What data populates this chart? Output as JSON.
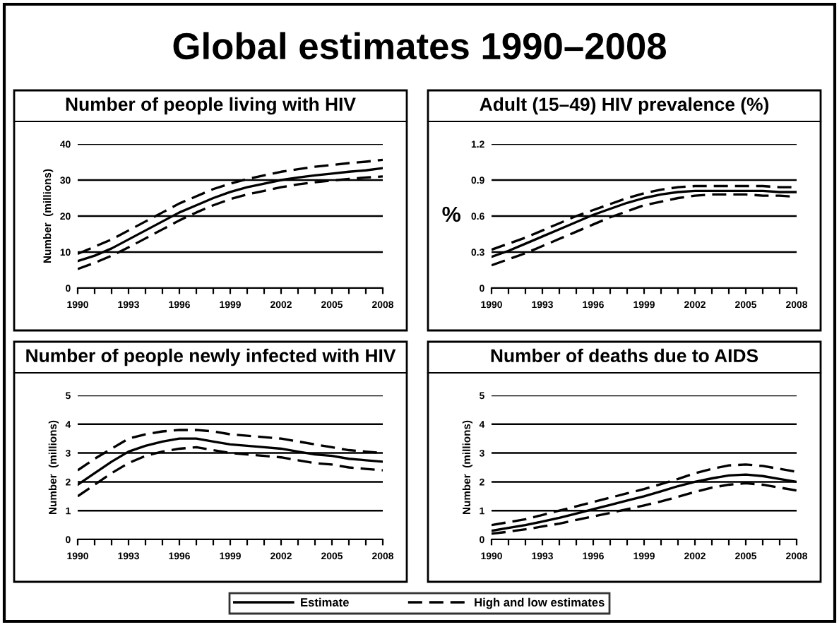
{
  "chart_data": [
    {
      "type": "line",
      "title": "Number of people living with HIV",
      "ylabel": "Number  (millions)",
      "annotations": [
        "Global estimates 1990–2008"
      ],
      "legend": "bottom",
      "grid": "y",
      "x": [
        1990,
        1991,
        1992,
        1993,
        1994,
        1995,
        1996,
        1997,
        1998,
        1999,
        2000,
        2001,
        2002,
        2003,
        2004,
        2005,
        2006,
        2007,
        2008
      ],
      "xlim": [
        1990,
        2008
      ],
      "xticks": [
        1990,
        {
          "value": 1991,
          "label": null
        },
        {
          "value": 1992,
          "label": null
        },
        1993,
        {
          "value": 1994,
          "label": null
        },
        {
          "value": 1995,
          "label": null
        },
        1996,
        {
          "value": 1997,
          "label": null
        },
        {
          "value": 1998,
          "label": null
        },
        1999,
        {
          "value": 2000,
          "label": null
        },
        {
          "value": 2001,
          "label": null
        },
        2002,
        {
          "value": 2003,
          "label": null
        },
        {
          "value": 2004,
          "label": null
        },
        2005,
        {
          "value": 2006,
          "label": null
        },
        {
          "value": 2007,
          "label": null
        },
        2008
      ],
      "ylim": [
        0,
        40
      ],
      "yticks": [
        0,
        10,
        20,
        30,
        40
      ],
      "series": [
        {
          "name": "Estimate",
          "color": "#000000",
          "line_style": "solid",
          "values": [
            7.5,
            9,
            11,
            13.5,
            16,
            18.5,
            21,
            23,
            25,
            26.7,
            28,
            29,
            30,
            30.7,
            31.3,
            31.8,
            32.3,
            32.7,
            33.3
          ]
        },
        {
          "name": "High and low estimates",
          "color": "#000000",
          "line_style": "dashed",
          "values": [
            9.5,
            11.5,
            13.5,
            16,
            18.5,
            21,
            23.5,
            25.5,
            27.5,
            29,
            30.3,
            31.3,
            32.3,
            33,
            33.7,
            34.2,
            34.7,
            35.1,
            35.6
          ]
        },
        {
          "color": "#000000",
          "line_style": "dashed",
          "values": [
            5.3,
            7,
            9,
            11.3,
            13.8,
            16.3,
            18.8,
            21,
            23,
            24.7,
            26,
            27,
            28,
            28.8,
            29.4,
            29.9,
            30.3,
            30.7,
            31
          ]
        }
      ]
    },
    {
      "type": "line",
      "title": "Adult (15–49) HIV prevalence (%)",
      "ylabel": "%",
      "grid": "y",
      "x": [
        1990,
        1991,
        1992,
        1993,
        1994,
        1995,
        1996,
        1997,
        1998,
        1999,
        2000,
        2001,
        2002,
        2003,
        2004,
        2005,
        2006,
        2007,
        2008
      ],
      "xlim": [
        1990,
        2008
      ],
      "xticks": [
        1990,
        {
          "value": 1991,
          "label": null
        },
        {
          "value": 1992,
          "label": null
        },
        1993,
        {
          "value": 1994,
          "label": null
        },
        {
          "value": 1995,
          "label": null
        },
        1996,
        {
          "value": 1997,
          "label": null
        },
        {
          "value": 1998,
          "label": null
        },
        1999,
        {
          "value": 2000,
          "label": null
        },
        {
          "value": 2001,
          "label": null
        },
        2002,
        {
          "value": 2003,
          "label": null
        },
        {
          "value": 2004,
          "label": null
        },
        2005,
        {
          "value": 2006,
          "label": null
        },
        {
          "value": 2007,
          "label": null
        },
        2008
      ],
      "ylim": [
        0,
        1.2
      ],
      "yticks": [
        0,
        0.3,
        0.6,
        0.9,
        1.2
      ],
      "series": [
        {
          "color": "#000000",
          "line_style": "solid",
          "values": [
            0.26,
            0.31,
            0.37,
            0.43,
            0.49,
            0.55,
            0.61,
            0.66,
            0.71,
            0.75,
            0.78,
            0.8,
            0.81,
            0.81,
            0.81,
            0.81,
            0.81,
            0.8,
            0.8
          ]
        },
        {
          "color": "#000000",
          "line_style": "dashed",
          "values": [
            0.32,
            0.37,
            0.42,
            0.48,
            0.54,
            0.6,
            0.65,
            0.7,
            0.75,
            0.79,
            0.82,
            0.84,
            0.85,
            0.85,
            0.85,
            0.85,
            0.85,
            0.84,
            0.84
          ]
        },
        {
          "color": "#000000",
          "line_style": "dashed",
          "values": [
            0.19,
            0.24,
            0.29,
            0.35,
            0.41,
            0.47,
            0.53,
            0.59,
            0.64,
            0.69,
            0.72,
            0.75,
            0.77,
            0.78,
            0.78,
            0.78,
            0.77,
            0.77,
            0.76
          ]
        }
      ]
    },
    {
      "type": "line",
      "title": "Number of people newly infected with HIV",
      "ylabel": "Number  (millions)",
      "grid": "y",
      "x": [
        1990,
        1991,
        1992,
        1993,
        1994,
        1995,
        1996,
        1997,
        1998,
        1999,
        2000,
        2001,
        2002,
        2003,
        2004,
        2005,
        2006,
        2007,
        2008
      ],
      "xlim": [
        1990,
        2008
      ],
      "xticks": [
        1990,
        {
          "value": 1991,
          "label": null
        },
        {
          "value": 1992,
          "label": null
        },
        1993,
        {
          "value": 1994,
          "label": null
        },
        {
          "value": 1995,
          "label": null
        },
        1996,
        {
          "value": 1997,
          "label": null
        },
        {
          "value": 1998,
          "label": null
        },
        1999,
        {
          "value": 2000,
          "label": null
        },
        {
          "value": 2001,
          "label": null
        },
        2002,
        {
          "value": 2003,
          "label": null
        },
        {
          "value": 2004,
          "label": null
        },
        2005,
        {
          "value": 2006,
          "label": null
        },
        {
          "value": 2007,
          "label": null
        },
        2008
      ],
      "ylim": [
        0,
        5
      ],
      "yticks": [
        0,
        1,
        2,
        3,
        4,
        5
      ],
      "series": [
        {
          "color": "#000000",
          "line_style": "solid",
          "values": [
            1.9,
            2.3,
            2.7,
            3.05,
            3.25,
            3.4,
            3.5,
            3.5,
            3.4,
            3.3,
            3.25,
            3.2,
            3.15,
            3.05,
            2.95,
            2.9,
            2.8,
            2.75,
            2.7
          ]
        },
        {
          "color": "#000000",
          "line_style": "dashed",
          "values": [
            2.4,
            2.8,
            3.15,
            3.5,
            3.65,
            3.75,
            3.8,
            3.8,
            3.75,
            3.65,
            3.6,
            3.55,
            3.5,
            3.4,
            3.3,
            3.2,
            3.1,
            3.05,
            3
          ]
        },
        {
          "color": "#000000",
          "line_style": "dashed",
          "values": [
            1.5,
            1.9,
            2.3,
            2.65,
            2.9,
            3.05,
            3.15,
            3.2,
            3.1,
            3,
            2.95,
            2.9,
            2.85,
            2.75,
            2.65,
            2.6,
            2.5,
            2.45,
            2.4
          ]
        }
      ]
    },
    {
      "type": "line",
      "title": "Number of deaths due to AIDS",
      "ylabel": "Number  (millions)",
      "grid": "y",
      "x": [
        1990,
        1991,
        1992,
        1993,
        1994,
        1995,
        1996,
        1997,
        1998,
        1999,
        2000,
        2001,
        2002,
        2003,
        2004,
        2005,
        2006,
        2007,
        2008
      ],
      "xlim": [
        1990,
        2008
      ],
      "xticks": [
        1990,
        {
          "value": 1991,
          "label": null
        },
        {
          "value": 1992,
          "label": null
        },
        1993,
        {
          "value": 1994,
          "label": null
        },
        {
          "value": 1995,
          "label": null
        },
        1996,
        {
          "value": 1997,
          "label": null
        },
        {
          "value": 1998,
          "label": null
        },
        1999,
        {
          "value": 2000,
          "label": null
        },
        {
          "value": 2001,
          "label": null
        },
        2002,
        {
          "value": 2003,
          "label": null
        },
        {
          "value": 2004,
          "label": null
        },
        2005,
        {
          "value": 2006,
          "label": null
        },
        {
          "value": 2007,
          "label": null
        },
        2008
      ],
      "ylim": [
        0,
        5
      ],
      "yticks": [
        0,
        1,
        2,
        3,
        4,
        5
      ],
      "series": [
        {
          "color": "#000000",
          "line_style": "solid",
          "values": [
            0.3,
            0.4,
            0.5,
            0.62,
            0.75,
            0.9,
            1.05,
            1.2,
            1.35,
            1.5,
            1.67,
            1.85,
            2,
            2.12,
            2.22,
            2.25,
            2.2,
            2.1,
            2
          ]
        },
        {
          "color": "#000000",
          "line_style": "dashed",
          "values": [
            0.5,
            0.6,
            0.7,
            0.85,
            1,
            1.15,
            1.3,
            1.45,
            1.6,
            1.75,
            1.92,
            2.1,
            2.3,
            2.45,
            2.57,
            2.6,
            2.55,
            2.45,
            2.35
          ]
        },
        {
          "color": "#000000",
          "line_style": "dashed",
          "values": [
            0.2,
            0.27,
            0.35,
            0.45,
            0.55,
            0.68,
            0.8,
            0.92,
            1.05,
            1.18,
            1.32,
            1.48,
            1.65,
            1.8,
            1.9,
            1.95,
            1.9,
            1.8,
            1.7
          ]
        }
      ]
    }
  ]
}
